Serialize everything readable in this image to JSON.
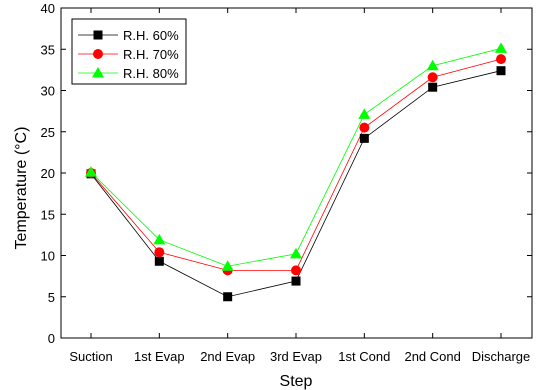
{
  "chart_data": {
    "type": "line",
    "xlabel": "Step",
    "ylabel": "Temperature (°C)",
    "ylim": [
      0,
      40
    ],
    "yticks": [
      0,
      5,
      10,
      15,
      20,
      25,
      30,
      35,
      40
    ],
    "categories": [
      "Suction",
      "1st Evap",
      "2nd Evap",
      "3rd Evap",
      "1st Cond",
      "2nd Cond",
      "Discharge"
    ],
    "legend_position": "top-left",
    "grid": false,
    "series": [
      {
        "name": "R.H. 60%",
        "marker": "square",
        "color": "#000000",
        "values": [
          19.9,
          9.3,
          5.0,
          6.9,
          24.2,
          30.4,
          32.4
        ]
      },
      {
        "name": "R.H. 70%",
        "marker": "circle",
        "color": "#ff0000",
        "values": [
          20.0,
          10.4,
          8.2,
          8.2,
          25.5,
          31.6,
          33.8
        ]
      },
      {
        "name": "R.H. 80%",
        "marker": "triangle",
        "color": "#00ff00",
        "values": [
          20.1,
          11.9,
          8.7,
          10.2,
          27.1,
          33.0,
          35.1
        ]
      }
    ]
  }
}
